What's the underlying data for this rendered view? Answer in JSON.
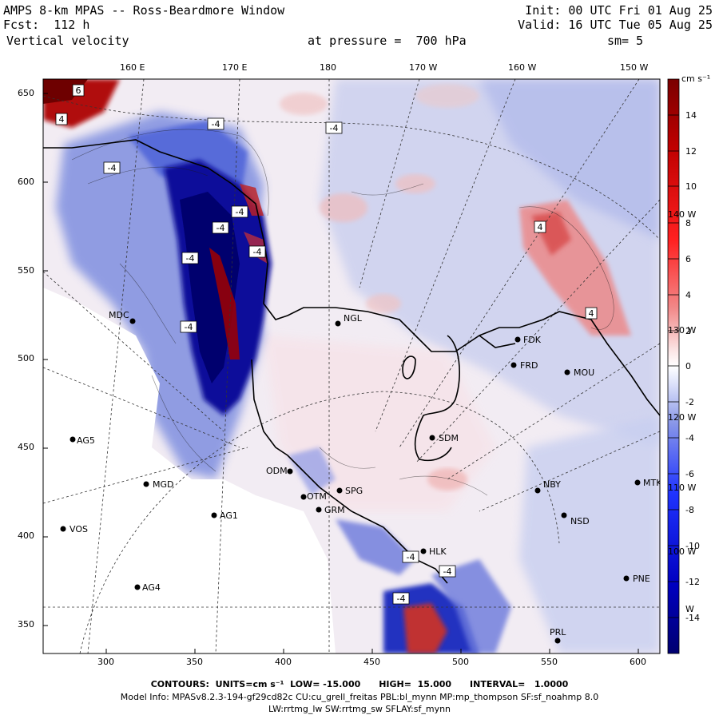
{
  "header": {
    "line1_left": "AMPS 8-km MPAS -- Ross-Beardmore Window",
    "line1_right": "Init: 00 UTC Fri 01 Aug 25",
    "line2_left": "Fcst:  112 h",
    "line2_right": "Valid: 16 UTC Tue 05 Aug 25",
    "line3_left": "Vertical velocity",
    "line3_mid": "at pressure =  700 hPa",
    "line3_right": "sm= 5"
  },
  "top_ticks": [
    "160 E",
    "170 E",
    "180",
    "170 W",
    "160 W",
    "150 W"
  ],
  "left_ticks": [
    "650",
    "600",
    "550",
    "500",
    "450",
    "400",
    "350"
  ],
  "bottom_ticks": [
    "300",
    "350",
    "400",
    "450",
    "500",
    "550",
    "600"
  ],
  "colorbar": {
    "unit_label": "cm s⁻¹",
    "labels": [
      "14",
      "12",
      "10",
      "8",
      "6",
      "4",
      "2",
      "0",
      "-2",
      "-4",
      "-6",
      "-8",
      "-10",
      "-12",
      "-14"
    ],
    "overlay_labels": [
      "140 W",
      "130 W",
      "120 W",
      "110 W",
      "100 W",
      "W"
    ]
  },
  "contour_labels": [
    "6",
    "4",
    "-4",
    "-4",
    "-4",
    "-4",
    "-4",
    "-4",
    "4",
    "4",
    "-4",
    "-4",
    "-4",
    "-4",
    "-4"
  ],
  "stations": [
    {
      "name": "MDC"
    },
    {
      "name": "NGL"
    },
    {
      "name": "FDK"
    },
    {
      "name": "FRD"
    },
    {
      "name": "MOU"
    },
    {
      "name": "AG5"
    },
    {
      "name": "SDM"
    },
    {
      "name": "ODM"
    },
    {
      "name": "NBY"
    },
    {
      "name": "MTK"
    },
    {
      "name": "MGD"
    },
    {
      "name": "SPG"
    },
    {
      "name": "OTM"
    },
    {
      "name": "GRM"
    },
    {
      "name": "AG1"
    },
    {
      "name": "NSD"
    },
    {
      "name": "VOS"
    },
    {
      "name": "HLK"
    },
    {
      "name": "AG4"
    },
    {
      "name": "PNE"
    },
    {
      "name": "PRL"
    }
  ],
  "footer": {
    "line1": "CONTOURS:  UNITS=cm s⁻¹  LOW= -15.000      HIGH=  15.000      INTERVAL=   1.0000",
    "line2": "Model Info: MPASv8.2.3-194-gf29cd82c CU:cu_grell_freitas PBL:bl_mynn MP:mp_thompson SF:sf_noahmp 8.0",
    "line3": "LW:rrtmg_lw SW:rrtmg_sw SFLAY:sf_mynn"
  },
  "colors": {
    "strong_up": "#8b0000",
    "up": "#e04040",
    "weak_up": "#f2c8c8",
    "neutral": "#f5f0f5",
    "weak_down": "#c8d0f0",
    "down": "#4060d0",
    "strong_down": "#00008b"
  }
}
